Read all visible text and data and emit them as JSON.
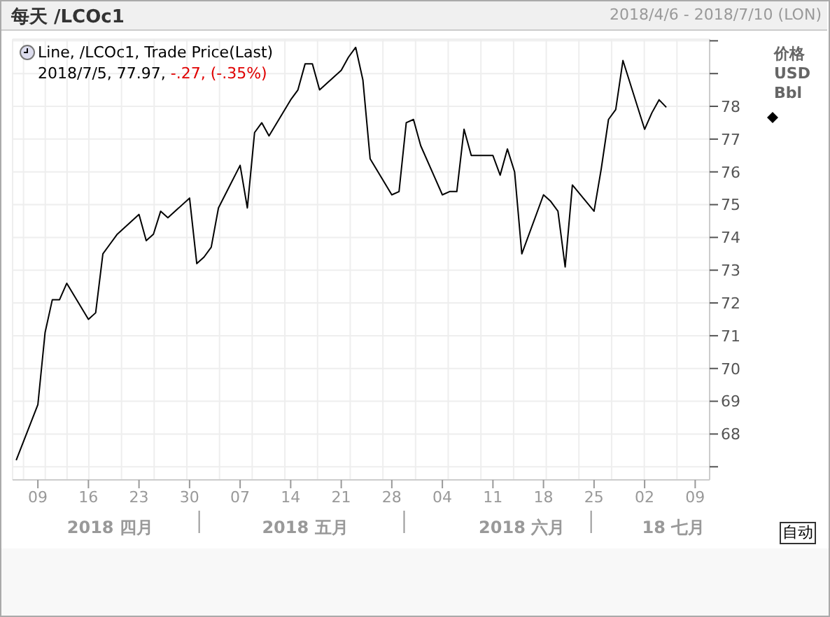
{
  "chart_data": {
    "type": "line",
    "title": "每天 /LCOc1",
    "subtitle": "2018/4/6 - 2018/7/10 (LON)",
    "ylabel": "价格\nUSD\nBbl",
    "x": [
      "2018-04-06",
      "2018-04-09",
      "2018-04-10",
      "2018-04-11",
      "2018-04-12",
      "2018-04-13",
      "2018-04-16",
      "2018-04-17",
      "2018-04-18",
      "2018-04-19",
      "2018-04-20",
      "2018-04-23",
      "2018-04-24",
      "2018-04-25",
      "2018-04-26",
      "2018-04-27",
      "2018-04-30",
      "2018-05-01",
      "2018-05-02",
      "2018-05-03",
      "2018-05-04",
      "2018-05-07",
      "2018-05-08",
      "2018-05-09",
      "2018-05-10",
      "2018-05-11",
      "2018-05-14",
      "2018-05-15",
      "2018-05-16",
      "2018-05-17",
      "2018-05-18",
      "2018-05-21",
      "2018-05-22",
      "2018-05-23",
      "2018-05-24",
      "2018-05-25",
      "2018-05-28",
      "2018-05-29",
      "2018-05-30",
      "2018-05-31",
      "2018-06-01",
      "2018-06-04",
      "2018-06-05",
      "2018-06-06",
      "2018-06-07",
      "2018-06-08",
      "2018-06-11",
      "2018-06-12",
      "2018-06-13",
      "2018-06-14",
      "2018-06-15",
      "2018-06-18",
      "2018-06-19",
      "2018-06-20",
      "2018-06-21",
      "2018-06-22",
      "2018-06-25",
      "2018-06-26",
      "2018-06-27",
      "2018-06-28",
      "2018-06-29",
      "2018-07-02",
      "2018-07-03",
      "2018-07-04",
      "2018-07-05"
    ],
    "series": [
      {
        "name": "Line, /LCOc1, Trade Price(Last)",
        "color": "#000000",
        "values": [
          67.2,
          68.9,
          71.1,
          72.1,
          72.1,
          72.6,
          71.5,
          71.7,
          73.5,
          73.8,
          74.1,
          74.7,
          73.9,
          74.1,
          74.8,
          74.6,
          75.2,
          73.2,
          73.4,
          73.7,
          74.9,
          76.2,
          74.9,
          77.2,
          77.5,
          77.1,
          78.2,
          78.5,
          79.3,
          79.3,
          78.5,
          79.1,
          79.5,
          79.8,
          78.8,
          76.4,
          75.3,
          75.4,
          77.5,
          77.6,
          76.8,
          75.3,
          75.4,
          75.4,
          77.3,
          76.5,
          76.5,
          75.9,
          76.7,
          76.0,
          73.5,
          75.3,
          75.1,
          74.8,
          73.1,
          75.6,
          74.8,
          76.1,
          77.6,
          77.9,
          79.4,
          77.3,
          77.8,
          78.2,
          77.97
        ]
      }
    ],
    "xlim": [
      "2018-04-05T12:00",
      "2018-07-11"
    ],
    "xticks": [
      {
        "value": "2018-04-09",
        "label": "09"
      },
      {
        "value": "2018-04-16",
        "label": "16"
      },
      {
        "value": "2018-04-23",
        "label": "23"
      },
      {
        "value": "2018-04-30",
        "label": "30"
      },
      {
        "value": "2018-05-07",
        "label": "07"
      },
      {
        "value": "2018-05-14",
        "label": "14"
      },
      {
        "value": "2018-05-21",
        "label": "21"
      },
      {
        "value": "2018-05-28",
        "label": "28"
      },
      {
        "value": "2018-06-04",
        "label": "04"
      },
      {
        "value": "2018-06-11",
        "label": "11"
      },
      {
        "value": "2018-06-18",
        "label": "18"
      },
      {
        "value": "2018-06-25",
        "label": "25"
      },
      {
        "value": "2018-07-02",
        "label": "02"
      },
      {
        "value": "2018-07-09",
        "label": "09"
      }
    ],
    "x2lim": [
      "2018-04-05T12:00",
      "2018-07-11"
    ],
    "x2ticks": [
      {
        "value": "2018-04-19",
        "label": "2018 四月"
      },
      {
        "value": "2018-05-16",
        "label": "2018 五月"
      },
      {
        "value": "2018-06-15",
        "label": "2018 六月"
      },
      {
        "value": "2018-07-06",
        "label": "18 七月"
      }
    ],
    "ylim": [
      66.6,
      80.05
    ],
    "yticks": [
      {
        "value": 67,
        "label": null
      },
      68,
      69,
      70,
      71,
      72,
      73,
      74,
      75,
      76,
      77,
      78,
      {
        "value": 79,
        "label": null
      },
      {
        "value": 80,
        "label": null
      }
    ],
    "annotations": [
      "2018/7/5, 77.97, ",
      "-.27, (-.35%)",
      "自动"
    ],
    "grid": true,
    "legend": "top left",
    "marker": "none",
    "line_style": "solid"
  }
}
